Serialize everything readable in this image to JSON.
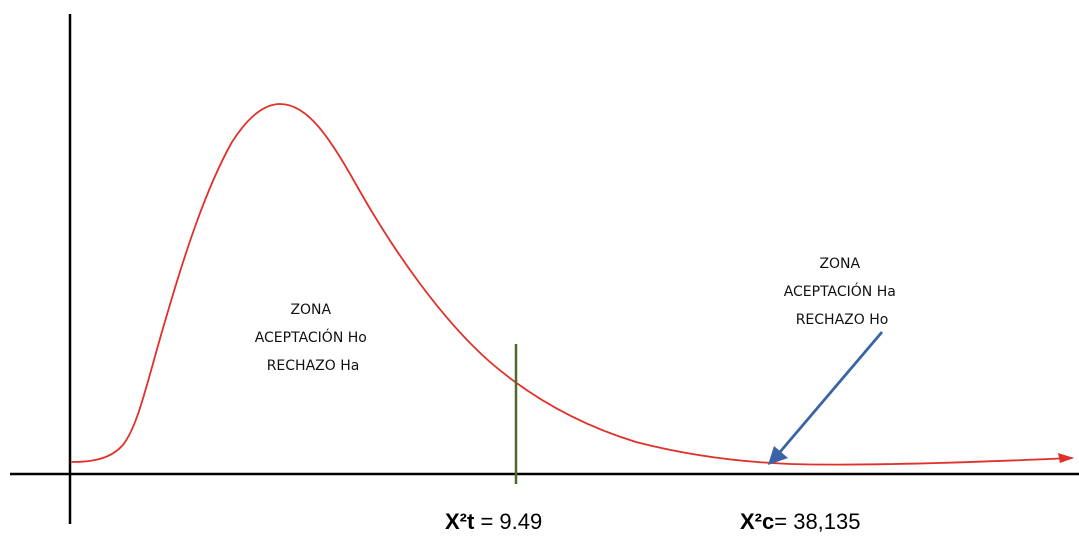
{
  "chart_data": {
    "type": "line",
    "title": "",
    "xlabel": "",
    "ylabel": "",
    "series": [
      {
        "name": "",
        "color": "#e0302a",
        "role": "chi-square density curve"
      }
    ],
    "critical_marker": {
      "prefix": "X²t",
      "rest": " = 9.49",
      "value": 9.49,
      "line_color": "#4a6b2a"
    },
    "calculated_marker": {
      "prefix": "X²c",
      "rest": "= 38,135",
      "value": 38.135,
      "arrow_color": "#3a63a6"
    },
    "annotations": {
      "acceptance_zone": {
        "lines": [
          "ZONA",
          "ACEPTACIÓN Ho",
          "RECHAZO Ha"
        ]
      },
      "rejection_zone": {
        "lines": [
          "ZONA",
          "ACEPTACIÓN Ha",
          "RECHAZO Ho"
        ]
      }
    },
    "axis_color": "#000000",
    "grid": false,
    "legend": "none"
  }
}
